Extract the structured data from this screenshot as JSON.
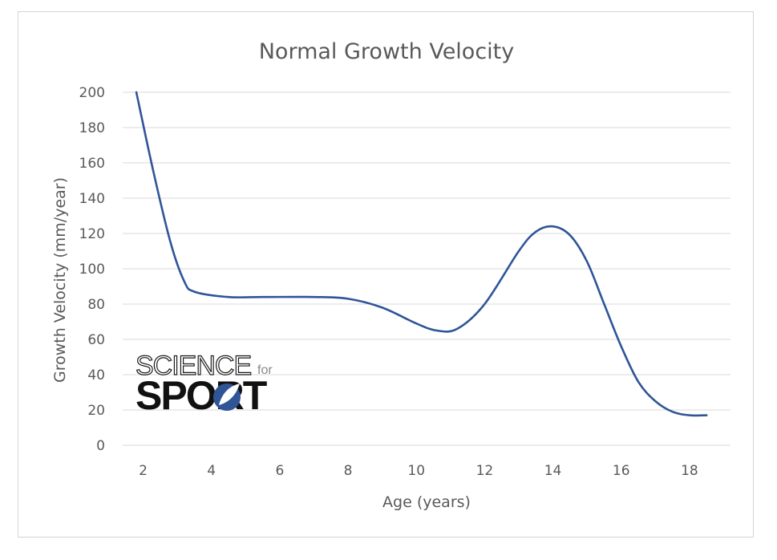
{
  "chart_data": {
    "type": "line",
    "title": "Normal Growth Velocity",
    "xlabel": "Age (years)",
    "ylabel": "Growth Velocity (mm/year)",
    "xlim": [
      1.4,
      19.2
    ],
    "ylim": [
      0,
      200
    ],
    "x_ticks": [
      2,
      4,
      6,
      8,
      10,
      12,
      14,
      16,
      18
    ],
    "y_ticks": [
      0,
      20,
      40,
      60,
      80,
      100,
      120,
      140,
      160,
      180,
      200
    ],
    "grid": true,
    "legend": "none",
    "series": [
      {
        "color": "#2f5597",
        "x": [
          1.8,
          2.3,
          2.8,
          3.2,
          3.5,
          4.5,
          5.5,
          7.0,
          8.0,
          9.0,
          10.0,
          10.6,
          11.2,
          12.0,
          13.0,
          13.5,
          14.0,
          14.5,
          15.0,
          15.5,
          16.0,
          16.5,
          17.0,
          17.5,
          18.0,
          18.5
        ],
        "y": [
          200,
          155,
          115,
          93,
          87,
          84,
          84,
          84,
          83,
          78,
          69,
          65,
          66,
          80,
          110,
          121,
          124,
          119,
          104,
          80,
          56,
          36,
          25,
          19,
          17,
          17
        ]
      }
    ]
  },
  "logo": {
    "line1": "SCIENCE",
    "word_for": "for",
    "line2": "SPORT"
  }
}
